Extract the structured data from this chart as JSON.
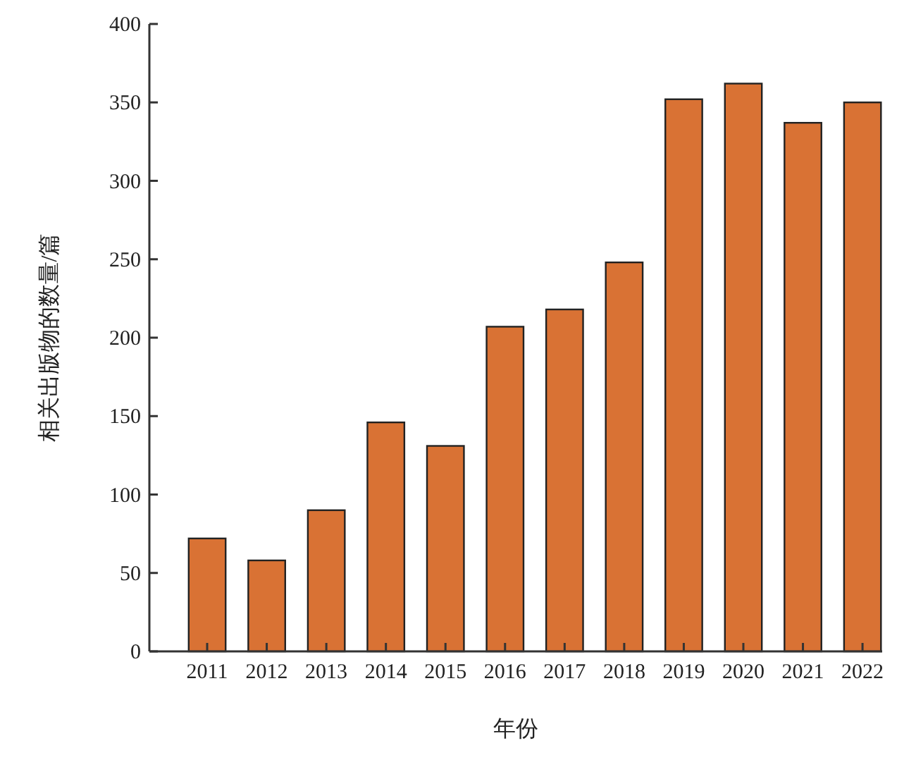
{
  "chart_data": {
    "type": "bar",
    "xlabel": "年份",
    "ylabel": "相关出版物的数量/篇",
    "categories": [
      "2011",
      "2012",
      "2013",
      "2014",
      "2015",
      "2016",
      "2017",
      "2018",
      "2019",
      "2020",
      "2021",
      "2022"
    ],
    "values": [
      72,
      58,
      90,
      146,
      131,
      207,
      218,
      248,
      352,
      362,
      337,
      350
    ],
    "color": "#d97234",
    "ylim": [
      0,
      400
    ],
    "yticks": [
      0,
      50,
      100,
      150,
      200,
      250,
      300,
      350,
      400
    ]
  }
}
